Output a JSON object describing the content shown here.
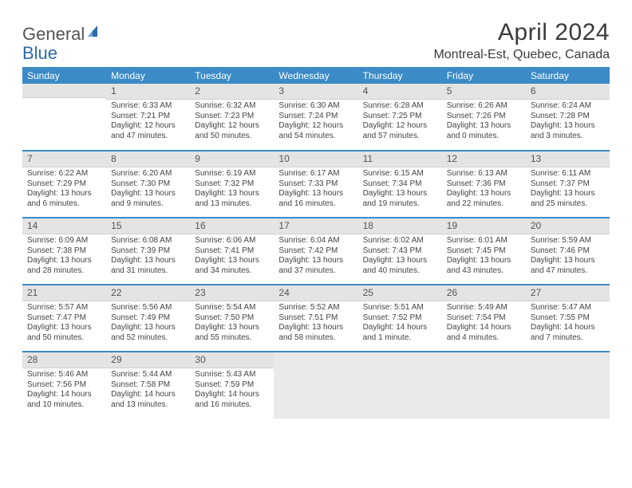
{
  "logo": {
    "text1": "General",
    "text2": "Blue"
  },
  "title": "April 2024",
  "location": "Montreal-Est, Quebec, Canada",
  "colors": {
    "header_bg": "#3b8bc7",
    "header_text": "#ffffff",
    "daynum_bg": "#e4e4e4",
    "row_divider": "#3b8bc7",
    "text": "#444444",
    "logo_gray": "#555555",
    "logo_blue": "#2b6aa6"
  },
  "weekdays": [
    "Sunday",
    "Monday",
    "Tuesday",
    "Wednesday",
    "Thursday",
    "Friday",
    "Saturday"
  ],
  "grid": [
    [
      {
        "n": "",
        "sr": "",
        "ss": "",
        "dl": ""
      },
      {
        "n": "1",
        "sr": "Sunrise: 6:33 AM",
        "ss": "Sunset: 7:21 PM",
        "dl": "Daylight: 12 hours and 47 minutes."
      },
      {
        "n": "2",
        "sr": "Sunrise: 6:32 AM",
        "ss": "Sunset: 7:23 PM",
        "dl": "Daylight: 12 hours and 50 minutes."
      },
      {
        "n": "3",
        "sr": "Sunrise: 6:30 AM",
        "ss": "Sunset: 7:24 PM",
        "dl": "Daylight: 12 hours and 54 minutes."
      },
      {
        "n": "4",
        "sr": "Sunrise: 6:28 AM",
        "ss": "Sunset: 7:25 PM",
        "dl": "Daylight: 12 hours and 57 minutes."
      },
      {
        "n": "5",
        "sr": "Sunrise: 6:26 AM",
        "ss": "Sunset: 7:26 PM",
        "dl": "Daylight: 13 hours and 0 minutes."
      },
      {
        "n": "6",
        "sr": "Sunrise: 6:24 AM",
        "ss": "Sunset: 7:28 PM",
        "dl": "Daylight: 13 hours and 3 minutes."
      }
    ],
    [
      {
        "n": "7",
        "sr": "Sunrise: 6:22 AM",
        "ss": "Sunset: 7:29 PM",
        "dl": "Daylight: 13 hours and 6 minutes."
      },
      {
        "n": "8",
        "sr": "Sunrise: 6:20 AM",
        "ss": "Sunset: 7:30 PM",
        "dl": "Daylight: 13 hours and 9 minutes."
      },
      {
        "n": "9",
        "sr": "Sunrise: 6:19 AM",
        "ss": "Sunset: 7:32 PM",
        "dl": "Daylight: 13 hours and 13 minutes."
      },
      {
        "n": "10",
        "sr": "Sunrise: 6:17 AM",
        "ss": "Sunset: 7:33 PM",
        "dl": "Daylight: 13 hours and 16 minutes."
      },
      {
        "n": "11",
        "sr": "Sunrise: 6:15 AM",
        "ss": "Sunset: 7:34 PM",
        "dl": "Daylight: 13 hours and 19 minutes."
      },
      {
        "n": "12",
        "sr": "Sunrise: 6:13 AM",
        "ss": "Sunset: 7:36 PM",
        "dl": "Daylight: 13 hours and 22 minutes."
      },
      {
        "n": "13",
        "sr": "Sunrise: 6:11 AM",
        "ss": "Sunset: 7:37 PM",
        "dl": "Daylight: 13 hours and 25 minutes."
      }
    ],
    [
      {
        "n": "14",
        "sr": "Sunrise: 6:09 AM",
        "ss": "Sunset: 7:38 PM",
        "dl": "Daylight: 13 hours and 28 minutes."
      },
      {
        "n": "15",
        "sr": "Sunrise: 6:08 AM",
        "ss": "Sunset: 7:39 PM",
        "dl": "Daylight: 13 hours and 31 minutes."
      },
      {
        "n": "16",
        "sr": "Sunrise: 6:06 AM",
        "ss": "Sunset: 7:41 PM",
        "dl": "Daylight: 13 hours and 34 minutes."
      },
      {
        "n": "17",
        "sr": "Sunrise: 6:04 AM",
        "ss": "Sunset: 7:42 PM",
        "dl": "Daylight: 13 hours and 37 minutes."
      },
      {
        "n": "18",
        "sr": "Sunrise: 6:02 AM",
        "ss": "Sunset: 7:43 PM",
        "dl": "Daylight: 13 hours and 40 minutes."
      },
      {
        "n": "19",
        "sr": "Sunrise: 6:01 AM",
        "ss": "Sunset: 7:45 PM",
        "dl": "Daylight: 13 hours and 43 minutes."
      },
      {
        "n": "20",
        "sr": "Sunrise: 5:59 AM",
        "ss": "Sunset: 7:46 PM",
        "dl": "Daylight: 13 hours and 47 minutes."
      }
    ],
    [
      {
        "n": "21",
        "sr": "Sunrise: 5:57 AM",
        "ss": "Sunset: 7:47 PM",
        "dl": "Daylight: 13 hours and 50 minutes."
      },
      {
        "n": "22",
        "sr": "Sunrise: 5:56 AM",
        "ss": "Sunset: 7:49 PM",
        "dl": "Daylight: 13 hours and 52 minutes."
      },
      {
        "n": "23",
        "sr": "Sunrise: 5:54 AM",
        "ss": "Sunset: 7:50 PM",
        "dl": "Daylight: 13 hours and 55 minutes."
      },
      {
        "n": "24",
        "sr": "Sunrise: 5:52 AM",
        "ss": "Sunset: 7:51 PM",
        "dl": "Daylight: 13 hours and 58 minutes."
      },
      {
        "n": "25",
        "sr": "Sunrise: 5:51 AM",
        "ss": "Sunset: 7:52 PM",
        "dl": "Daylight: 14 hours and 1 minute."
      },
      {
        "n": "26",
        "sr": "Sunrise: 5:49 AM",
        "ss": "Sunset: 7:54 PM",
        "dl": "Daylight: 14 hours and 4 minutes."
      },
      {
        "n": "27",
        "sr": "Sunrise: 5:47 AM",
        "ss": "Sunset: 7:55 PM",
        "dl": "Daylight: 14 hours and 7 minutes."
      }
    ],
    [
      {
        "n": "28",
        "sr": "Sunrise: 5:46 AM",
        "ss": "Sunset: 7:56 PM",
        "dl": "Daylight: 14 hours and 10 minutes."
      },
      {
        "n": "29",
        "sr": "Sunrise: 5:44 AM",
        "ss": "Sunset: 7:58 PM",
        "dl": "Daylight: 14 hours and 13 minutes."
      },
      {
        "n": "30",
        "sr": "Sunrise: 5:43 AM",
        "ss": "Sunset: 7:59 PM",
        "dl": "Daylight: 14 hours and 16 minutes."
      },
      {
        "n": "",
        "sr": "",
        "ss": "",
        "dl": "",
        "trailing": true
      },
      {
        "n": "",
        "sr": "",
        "ss": "",
        "dl": "",
        "trailing": true
      },
      {
        "n": "",
        "sr": "",
        "ss": "",
        "dl": "",
        "trailing": true
      },
      {
        "n": "",
        "sr": "",
        "ss": "",
        "dl": "",
        "trailing": true
      }
    ]
  ]
}
